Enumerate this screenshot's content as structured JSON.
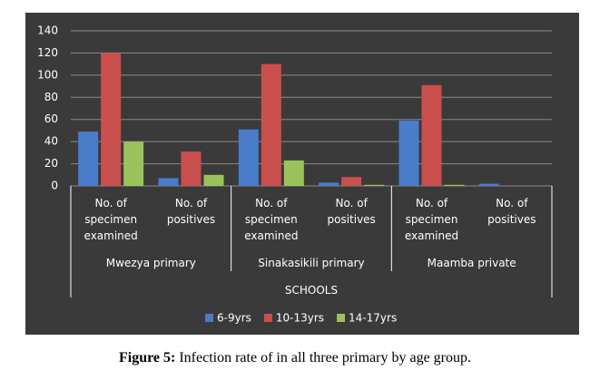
{
  "chart_data": {
    "type": "bar",
    "xlabel": "SCHOOLS",
    "categories": [
      "No. of specimen examined",
      "No. of positives",
      "No. of specimen examined",
      "No. of positives",
      "No. of specimen examined",
      "No. of positives"
    ],
    "category_groups": [
      "Mwezya primary",
      "Sinakasikili primary",
      "Maamba private"
    ],
    "series": [
      {
        "name": "6-9yrs",
        "color": "#4a7cc9",
        "values": [
          49,
          7,
          51,
          3,
          59,
          2
        ]
      },
      {
        "name": "10-13yrs",
        "color": "#c9504d",
        "values": [
          120,
          31,
          110,
          8,
          91,
          0
        ]
      },
      {
        "name": "14-17yrs",
        "color": "#9bc25a",
        "values": [
          40,
          10,
          23,
          1,
          1,
          0
        ]
      }
    ],
    "ylim": [
      0,
      140
    ],
    "yticks": [
      0,
      20,
      40,
      60,
      80,
      100,
      120,
      140
    ],
    "grid": true
  },
  "caption": {
    "label": "Figure 5:",
    "text": "Infection rate of in all three primary by age group."
  }
}
